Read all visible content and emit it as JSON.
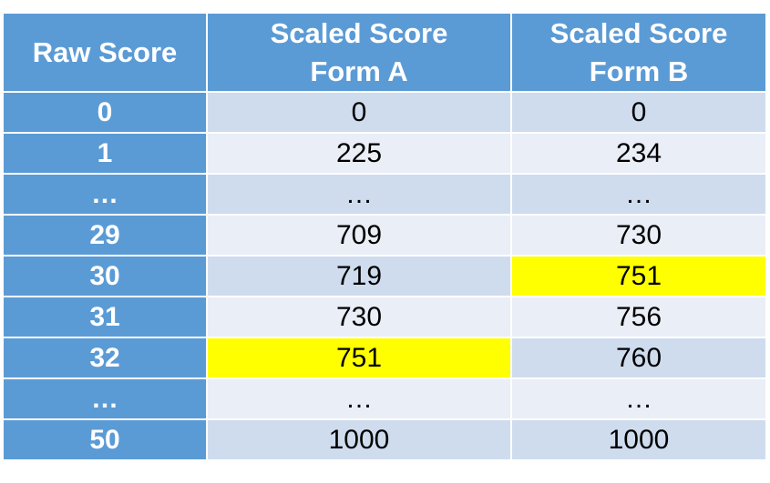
{
  "table": {
    "header": {
      "raw": "Raw Score",
      "form_a_line1": "Scaled Score",
      "form_a_line2": "Form A",
      "form_b_line1": "Scaled Score",
      "form_b_line2": "Form B"
    },
    "rows": [
      {
        "raw": "0",
        "form_a": "0",
        "form_b": "0",
        "highlight": ""
      },
      {
        "raw": "1",
        "form_a": "225",
        "form_b": "234",
        "highlight": ""
      },
      {
        "raw": "…",
        "form_a": "…",
        "form_b": "…",
        "highlight": ""
      },
      {
        "raw": "29",
        "form_a": "709",
        "form_b": "730",
        "highlight": ""
      },
      {
        "raw": "30",
        "form_a": "719",
        "form_b": "751",
        "highlight": "form_b"
      },
      {
        "raw": "31",
        "form_a": "730",
        "form_b": "756",
        "highlight": ""
      },
      {
        "raw": "32",
        "form_a": "751",
        "form_b": "760",
        "highlight": "form_a"
      },
      {
        "raw": "…",
        "form_a": "…",
        "form_b": "…",
        "highlight": ""
      },
      {
        "raw": "50",
        "form_a": "1000",
        "form_b": "1000",
        "highlight": ""
      }
    ]
  },
  "colors": {
    "header_bg": "#5b9bd5",
    "row_dark": "#cfdcee",
    "row_light": "#e9eef7",
    "highlight": "#ffff00"
  }
}
